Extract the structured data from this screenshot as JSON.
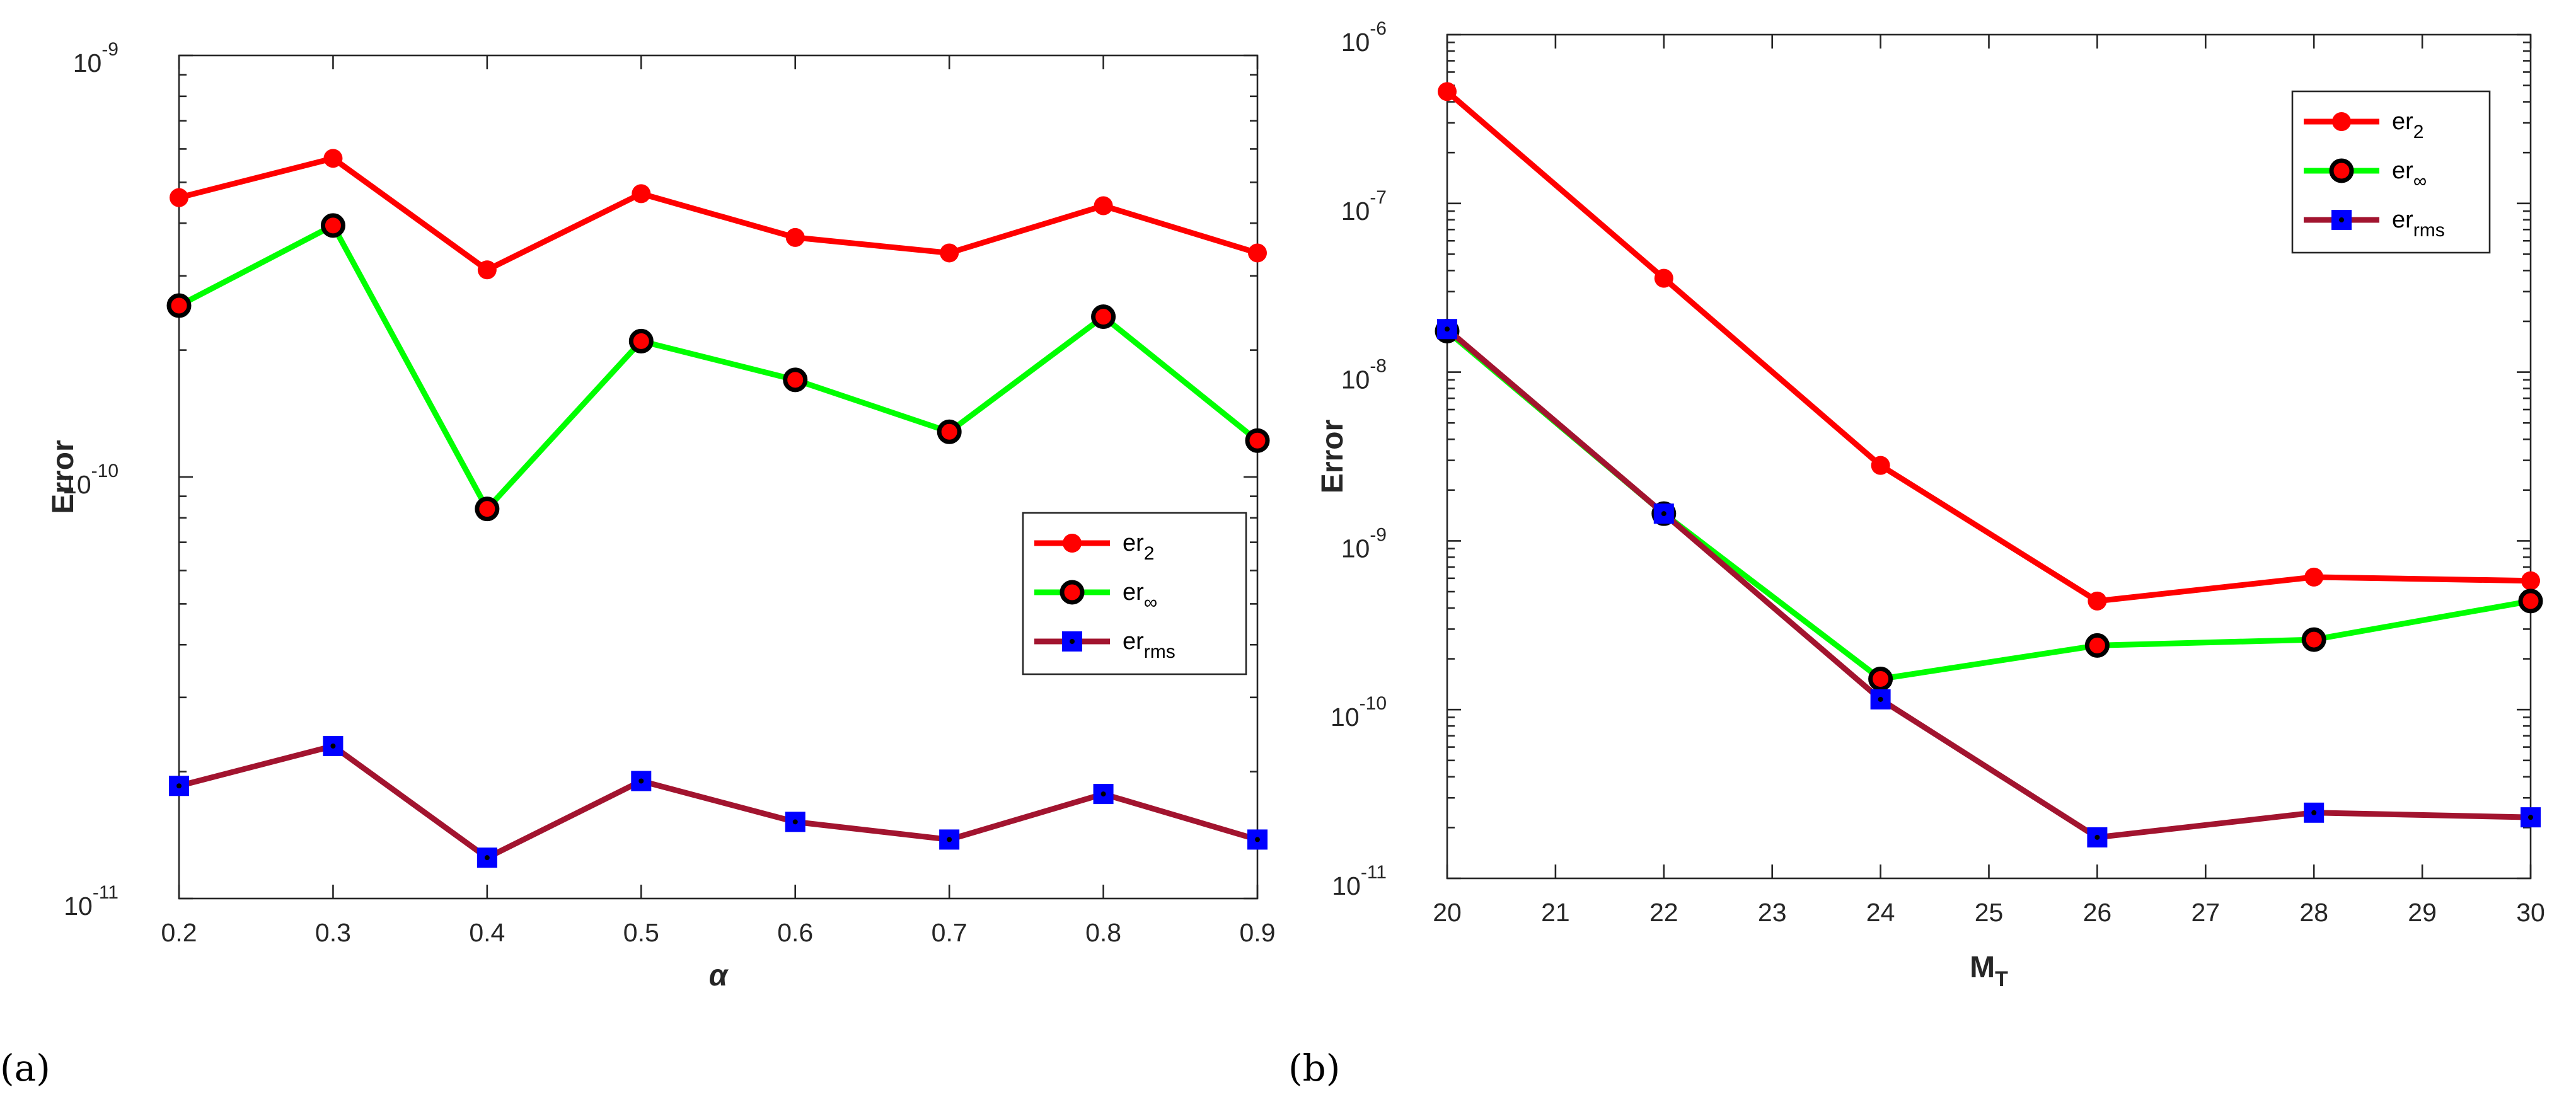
{
  "chart_data": [
    {
      "type": "line",
      "panel_label": "(a)",
      "xlabel": "α",
      "ylabel": "Error",
      "yscale": "log",
      "xlim": [
        0.2,
        0.9
      ],
      "ylim": [
        1e-11,
        1e-09
      ],
      "x": [
        0.2,
        0.3,
        0.4,
        0.5,
        0.6,
        0.7,
        0.8,
        0.9
      ],
      "xtick_labels": [
        "0.2",
        "0.3",
        "0.4",
        "0.5",
        "0.6",
        "0.7",
        "0.8",
        "0.9"
      ],
      "ytick_labels": [
        {
          "base": "10",
          "exp": "-9"
        },
        {
          "base": "10",
          "exp": "-10"
        },
        {
          "base": "10",
          "exp": "-11"
        }
      ],
      "legend_position": "center-right",
      "series": [
        {
          "name": "er",
          "sub": "2",
          "color": "#ff0000",
          "marker": "circle",
          "values": [
            4.6e-10,
            5.7e-10,
            3.1e-10,
            4.7e-10,
            3.7e-10,
            3.4e-10,
            4.4e-10,
            3.4e-10
          ]
        },
        {
          "name": "er",
          "sub": "∞",
          "color": "#00ff00",
          "marker": "circle-black",
          "values": [
            2.55e-10,
            3.95e-10,
            8.4e-11,
            2.1e-10,
            1.7e-10,
            1.28e-10,
            2.4e-10,
            1.22e-10
          ]
        },
        {
          "name": "er",
          "sub": "rms",
          "color": "#a2142f",
          "marker": "square-blue",
          "values": [
            1.85e-11,
            2.3e-11,
            1.25e-11,
            1.9e-11,
            1.52e-11,
            1.38e-11,
            1.77e-11,
            1.38e-11
          ]
        }
      ]
    },
    {
      "type": "line",
      "panel_label": "(b)",
      "xlabel": "M",
      "xlabel_sub": "T",
      "ylabel": "Error",
      "yscale": "log",
      "xlim": [
        20,
        30
      ],
      "ylim": [
        1e-11,
        1e-06
      ],
      "x": [
        20,
        22,
        24,
        26,
        28,
        30
      ],
      "xtick_labels": [
        "20",
        "21",
        "22",
        "23",
        "24",
        "25",
        "26",
        "27",
        "28",
        "29",
        "30"
      ],
      "ytick_labels": [
        {
          "base": "10",
          "exp": "-6"
        },
        {
          "base": "10",
          "exp": "-7"
        },
        {
          "base": "10",
          "exp": "-8"
        },
        {
          "base": "10",
          "exp": "-9"
        },
        {
          "base": "10",
          "exp": "-10"
        },
        {
          "base": "10",
          "exp": "-11"
        }
      ],
      "legend_position": "top-right",
      "series": [
        {
          "name": "er",
          "sub": "2",
          "color": "#ff0000",
          "marker": "circle",
          "values": [
            4.6e-07,
            3.6e-08,
            2.8e-09,
            4.4e-10,
            6.1e-10,
            5.8e-10
          ]
        },
        {
          "name": "er",
          "sub": "∞",
          "color": "#00ff00",
          "marker": "circle-black",
          "values": [
            1.75e-08,
            1.45e-09,
            1.52e-10,
            2.4e-10,
            2.6e-10,
            4.4e-10
          ]
        },
        {
          "name": "er",
          "sub": "rms",
          "color": "#a2142f",
          "marker": "square-blue",
          "values": [
            1.8e-08,
            1.45e-09,
            1.15e-10,
            1.75e-11,
            2.45e-11,
            2.3e-11
          ]
        }
      ]
    }
  ]
}
